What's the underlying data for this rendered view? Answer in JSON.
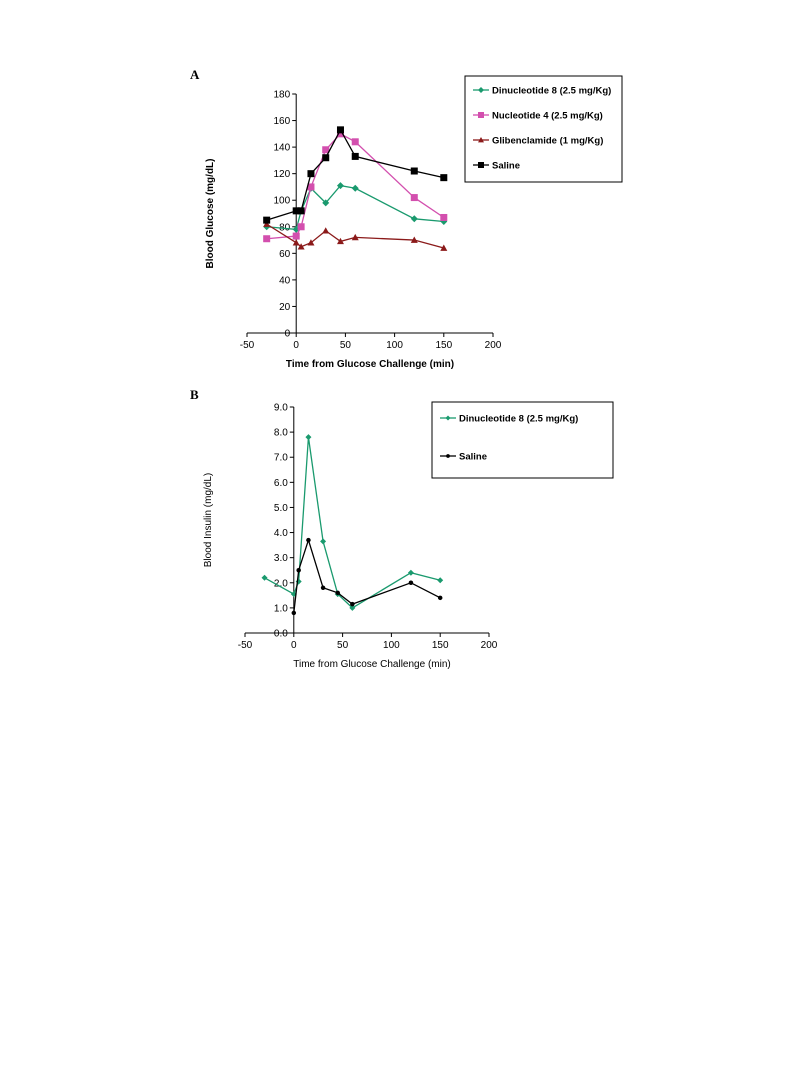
{
  "panels": {
    "a": {
      "letter": "A"
    },
    "b": {
      "letter": "B"
    }
  },
  "chart_data": [
    {
      "type": "line",
      "panel": "A",
      "xlabel": "Time from Glucose Challenge (min)",
      "ylabel": "Blood Glucose (mg/dL)",
      "xlim": [
        -50,
        200
      ],
      "ylim": [
        0,
        180
      ],
      "xticks": [
        "-50",
        "0",
        "50",
        "100",
        "150",
        "200"
      ],
      "yticks": [
        "0",
        "20",
        "40",
        "60",
        "80",
        "100",
        "120",
        "140",
        "160",
        "180"
      ],
      "legend_position": "top-right",
      "series": [
        {
          "name": "Dinucleotide 8 (2.5 mg/Kg)",
          "color": "#1a9a6e",
          "marker": "diamond",
          "x": [
            -30,
            0,
            5,
            15,
            30,
            45,
            60,
            120,
            150
          ],
          "y": [
            80,
            78,
            92,
            109,
            98,
            111,
            109,
            86,
            84
          ]
        },
        {
          "name": "Nucleotide 4 (2.5 mg/Kg)",
          "color": "#d34fae",
          "marker": "square",
          "x": [
            -30,
            0,
            5,
            15,
            30,
            45,
            60,
            120,
            150
          ],
          "y": [
            71,
            73,
            80,
            110,
            138,
            150,
            144,
            102,
            87
          ]
        },
        {
          "name": "Glibenclamide (1 mg/Kg)",
          "color": "#8b1a1a",
          "marker": "triangle",
          "x": [
            -30,
            0,
            5,
            15,
            30,
            45,
            60,
            120,
            150
          ],
          "y": [
            82,
            68,
            65,
            68,
            77,
            69,
            72,
            70,
            64
          ]
        },
        {
          "name": "Saline",
          "color": "#000000",
          "marker": "square",
          "x": [
            -30,
            0,
            5,
            15,
            30,
            45,
            60,
            120,
            150
          ],
          "y": [
            85,
            92,
            92,
            120,
            132,
            153,
            133,
            122,
            117
          ]
        }
      ]
    },
    {
      "type": "line",
      "panel": "B",
      "xlabel": "Time from Glucose Challenge (min)",
      "ylabel": "Blood Insulin (mg/dL)",
      "xlim": [
        -50,
        200
      ],
      "ylim": [
        0,
        9
      ],
      "xticks": [
        "-50",
        "0",
        "50",
        "100",
        "150",
        "200"
      ],
      "yticks": [
        "0.0",
        "1.0",
        "2.0",
        "3.0",
        "4.0",
        "5.0",
        "6.0",
        "7.0",
        "8.0",
        "9.0"
      ],
      "legend_position": "top-right",
      "series": [
        {
          "name": "Dinucleotide 8 (2.5 mg/Kg)",
          "color": "#1a9a6e",
          "marker": "diamond",
          "x": [
            -30,
            0,
            5,
            15,
            30,
            45,
            60,
            120,
            150
          ],
          "y": [
            2.2,
            1.55,
            2.05,
            7.8,
            3.65,
            1.55,
            1.0,
            2.4,
            2.1
          ]
        },
        {
          "name": "Saline",
          "color": "#000000",
          "marker": "dot",
          "x": [
            0,
            5,
            15,
            30,
            45,
            60,
            120,
            150
          ],
          "y": [
            0.8,
            2.5,
            3.7,
            1.8,
            1.6,
            1.15,
            2.0,
            1.4
          ]
        }
      ]
    }
  ]
}
